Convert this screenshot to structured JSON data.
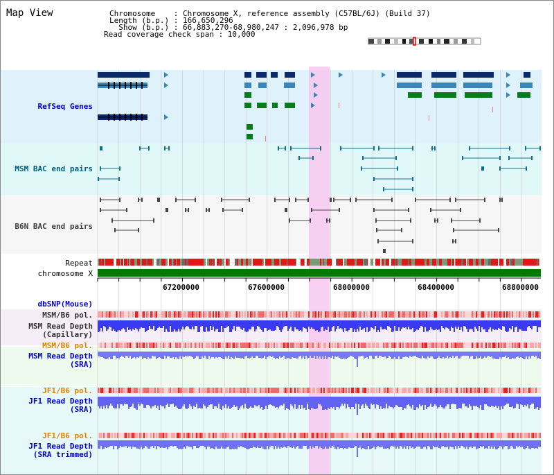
{
  "app": {
    "title": "Map View"
  },
  "header": {
    "lines": [
      "Chromosome    : Chromosome X, reference assembly (C57BL/6J) (Build 37)",
      "Length (b.p.) : 166,650,296",
      "  Show (b.p.) : 66,883,270-68,980,247 : 2,096,978 bp",
      "Read coverage check span : 10,000"
    ]
  },
  "tracks": {
    "refseq": {
      "label": "RefSeq Genes",
      "color": "#00009c"
    },
    "msm_bac": {
      "label": "MSM BAC end pairs",
      "color": "#006080"
    },
    "b6n_bac": {
      "label": "B6N BAC end pairs",
      "color": "#404040"
    },
    "repeat": {
      "label": "Repeat"
    },
    "chromosome": {
      "label": "chromosome X"
    },
    "dbsnp": {
      "label": "dbSNP(Mouse)"
    },
    "msm_b6_pol_cap": {
      "label": "MSM/B6 pol."
    },
    "msm_depth_cap": {
      "label": "MSM Read Depth",
      "sub": "(Capillary)"
    },
    "msm_b6_pol_sra": {
      "label": "MSM/B6 pol."
    },
    "msm_depth_sra": {
      "label": "MSM Read Depth",
      "sub": "(SRA)"
    },
    "jf1_b6_pol": {
      "label": "JF1/B6 pol."
    },
    "jf1_depth_sra": {
      "label": "JF1 Read Depth",
      "sub": "(SRA)"
    },
    "jf1_b6_pol_2": {
      "label": "JF1/B6 pol."
    },
    "jf1_depth_trim": {
      "label": "JF1 Read Depth",
      "sub": "(SRA trimmed)"
    }
  },
  "axis": {
    "ticks": [
      "67200000",
      "67600000",
      "68000000",
      "68400000",
      "68800000"
    ]
  },
  "colors": {
    "label_blue": "#0000cc",
    "label_orange": "#e08000",
    "label_gray": "#333333",
    "refseq_dark": "#0a2a6a",
    "refseq_mid": "#3b86b8",
    "refseq_green": "#0a7a1e",
    "highlight": "#f7c8ef",
    "depth_blue": "#4a4af0",
    "chromosome_green": "#007a00"
  }
}
